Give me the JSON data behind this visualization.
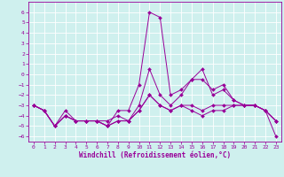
{
  "xlabel": "Windchill (Refroidissement éolien,°C)",
  "background_color": "#cff0ee",
  "line_color": "#990099",
  "grid_color": "#ffffff",
  "x": [
    0,
    1,
    2,
    3,
    4,
    5,
    6,
    7,
    8,
    9,
    10,
    11,
    12,
    13,
    14,
    15,
    16,
    17,
    18,
    19,
    20,
    21,
    22,
    23
  ],
  "lines": [
    [
      -3.0,
      -3.5,
      -5.0,
      -3.5,
      -4.5,
      -4.5,
      -4.5,
      -5.0,
      -3.5,
      -3.5,
      -1.0,
      6.0,
      5.5,
      -2.0,
      -1.5,
      -0.5,
      -0.5,
      -1.5,
      -1.0,
      -2.5,
      -3.0,
      -3.0,
      -3.5,
      -4.5
    ],
    [
      -3.0,
      -3.5,
      -5.0,
      -4.0,
      -4.5,
      -4.5,
      -4.5,
      -4.5,
      -4.0,
      -4.5,
      -3.0,
      0.5,
      -2.0,
      -3.0,
      -2.0,
      -0.5,
      0.5,
      -2.0,
      -1.5,
      -2.5,
      -3.0,
      -3.0,
      -3.5,
      -4.5
    ],
    [
      -3.0,
      -3.5,
      -5.0,
      -4.0,
      -4.5,
      -4.5,
      -4.5,
      -5.0,
      -4.5,
      -4.5,
      -3.5,
      -2.0,
      -3.0,
      -3.5,
      -3.0,
      -3.0,
      -3.5,
      -3.0,
      -3.0,
      -3.0,
      -3.0,
      -3.0,
      -3.5,
      -4.5
    ],
    [
      -3.0,
      -3.5,
      -5.0,
      -4.0,
      -4.5,
      -4.5,
      -4.5,
      -5.0,
      -4.5,
      -4.5,
      -3.5,
      -2.0,
      -3.0,
      -3.5,
      -3.0,
      -3.5,
      -4.0,
      -3.5,
      -3.5,
      -3.0,
      -3.0,
      -3.0,
      -3.5,
      -6.0
    ]
  ],
  "ylim": [
    -6.5,
    7.0
  ],
  "xlim": [
    -0.5,
    23.5
  ],
  "yticks": [
    -6,
    -5,
    -4,
    -3,
    -2,
    -1,
    0,
    1,
    2,
    3,
    4,
    5,
    6
  ],
  "xticks": [
    0,
    1,
    2,
    3,
    4,
    5,
    6,
    7,
    8,
    9,
    10,
    11,
    12,
    13,
    14,
    15,
    16,
    17,
    18,
    19,
    20,
    21,
    22,
    23
  ],
  "tick_fontsize": 4.5,
  "xlabel_fontsize": 5.5,
  "linewidth": 0.7,
  "markersize": 2.0
}
